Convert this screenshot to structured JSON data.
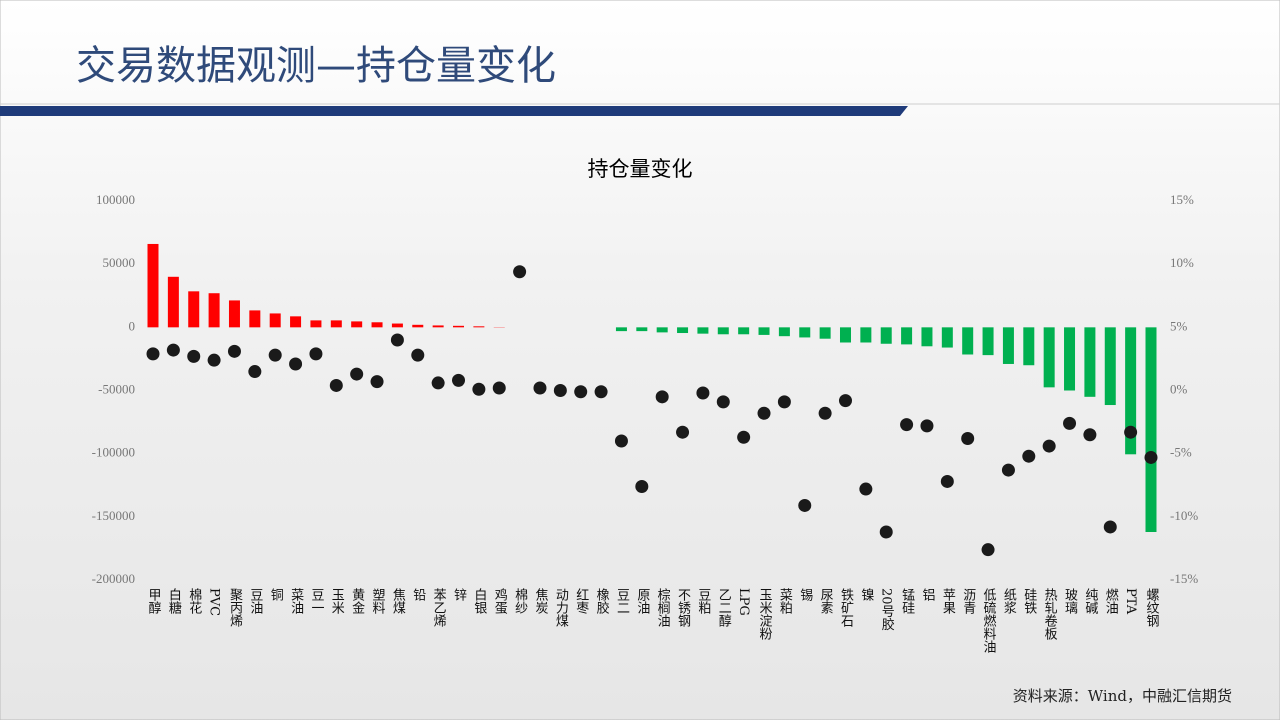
{
  "header": {
    "title": "交易数据观测—持仓量变化"
  },
  "source": "资料来源：Wind，中融汇信期货",
  "chart_data": {
    "type": "combo",
    "title": "持仓量变化",
    "categories": [
      "甲醇",
      "白糖",
      "棉花",
      "PVC",
      "聚丙烯",
      "豆油",
      "铜",
      "菜油",
      "豆一",
      "玉米",
      "黄金",
      "塑料",
      "焦煤",
      "铅",
      "苯乙烯",
      "锌",
      "白银",
      "鸡蛋",
      "棉纱",
      "焦炭",
      "动力煤",
      "红枣",
      "橡胶",
      "豆二",
      "原油",
      "棕榈油",
      "不锈钢",
      "豆粕",
      "乙二醇",
      "LPG",
      "玉米淀粉",
      "菜粕",
      "锡",
      "尿素",
      "铁矿石",
      "镍",
      "20号胶",
      "锰硅",
      "铝",
      "苹果",
      "沥青",
      "低硫燃料油",
      "纸浆",
      "硅铁",
      "热轧卷板",
      "玻璃",
      "纯碱",
      "燃油",
      "PTA",
      "螺纹钢"
    ],
    "series": [
      {
        "type": "bar",
        "color_positive": "#ff0000",
        "color_negative": "#00b050",
        "values": [
          66000,
          40000,
          28500,
          27000,
          21300,
          13400,
          11000,
          8700,
          5500,
          5500,
          4700,
          4000,
          3000,
          2000,
          1500,
          1200,
          800,
          200,
          0,
          0,
          0,
          0,
          0,
          -3000,
          -3000,
          -4000,
          -4500,
          -5000,
          -5500,
          -5500,
          -6000,
          -7000,
          -8000,
          -9000,
          -12000,
          -12000,
          -13000,
          -13500,
          -15000,
          -16000,
          -21500,
          -22000,
          -29000,
          -30000,
          -47500,
          -50000,
          -55000,
          -61500,
          -100500,
          -162000
        ]
      },
      {
        "type": "scatter",
        "axis": "y2",
        "color": "#1a1a1a",
        "values": [
          2.9,
          3.2,
          2.7,
          2.4,
          3.1,
          1.5,
          2.8,
          2.1,
          2.9,
          0.4,
          1.3,
          0.7,
          4.0,
          2.8,
          0.6,
          0.8,
          0.1,
          0.2,
          9.4,
          0.2,
          0,
          -0.1,
          -0.1,
          -4.0,
          -7.6,
          -0.5,
          -3.3,
          -0.2,
          -0.9,
          -3.7,
          -1.8,
          -0.9,
          -9.1,
          -1.8,
          -0.8,
          -7.8,
          -11.2,
          -2.7,
          -2.8,
          -7.2,
          -3.8,
          -12.6,
          -6.3,
          -5.2,
          -4.4,
          -2.6,
          -3.5,
          -10.8,
          -3.3,
          -5.3
        ]
      }
    ],
    "ylim": [
      -200000,
      100000
    ],
    "yticks": [
      100000,
      50000,
      0,
      -50000,
      -100000,
      -150000,
      -200000
    ],
    "y2lim": [
      -15,
      15
    ],
    "y2ticks": [
      {
        "value": 15,
        "label": "15%"
      },
      {
        "value": 10,
        "label": "10%"
      },
      {
        "value": 5,
        "label": "5%"
      },
      {
        "value": 0,
        "label": "0%"
      },
      {
        "value": -5,
        "label": "-5%"
      },
      {
        "value": -10,
        "label": "-10%"
      },
      {
        "value": -15,
        "label": "-15%"
      }
    ],
    "grid": false
  }
}
